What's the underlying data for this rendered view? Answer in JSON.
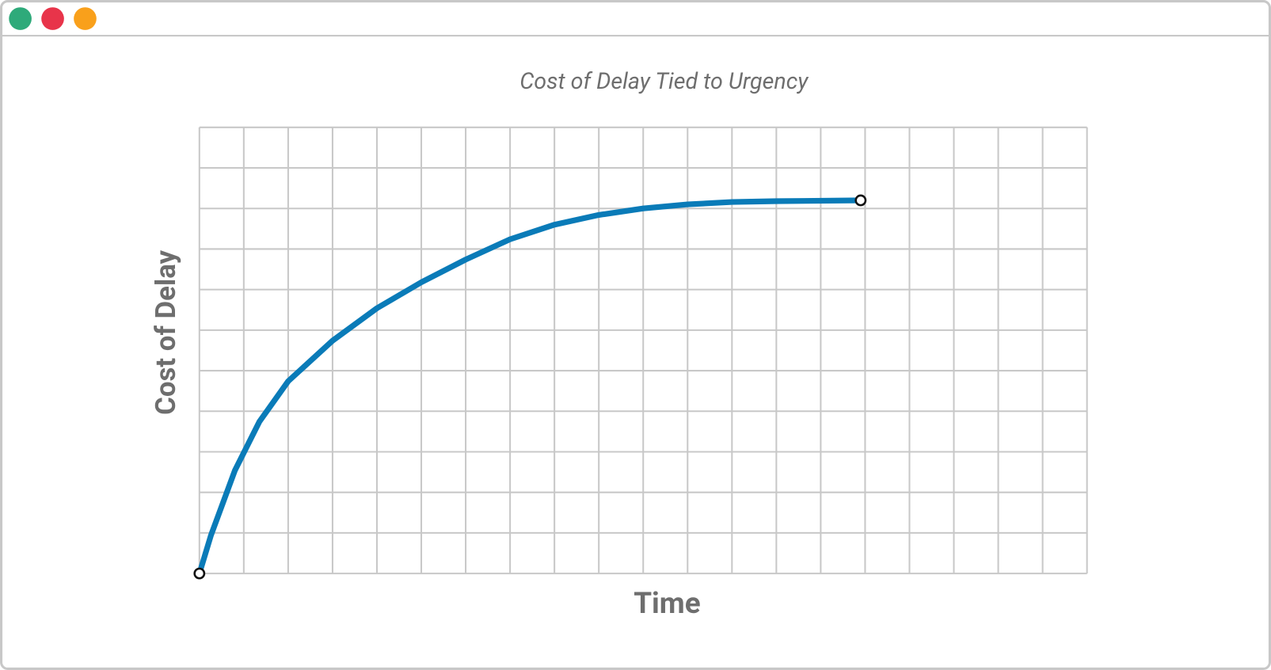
{
  "chart_data": {
    "type": "line",
    "title": "Cost of Delay Tied to Urgency",
    "x_label": "Time",
    "y_label": "Cost of Delay",
    "x": [
      0,
      0.26,
      0.8,
      1.35,
      2,
      3,
      4,
      5,
      6,
      7,
      8,
      9,
      10,
      11,
      12,
      13,
      14.9
    ],
    "series": [
      {
        "color": "#0a7bb8",
        "values": [
          0,
          0.94,
          2.54,
          3.74,
          4.74,
          5.74,
          6.54,
          7.18,
          7.74,
          8.24,
          8.6,
          8.84,
          9.0,
          9.1,
          9.16,
          9.18,
          9.2
        ]
      }
    ],
    "xlim": [
      0,
      20
    ],
    "ylim": [
      0,
      11
    ],
    "xticks": [
      0,
      1,
      2,
      3,
      4,
      5,
      6,
      7,
      8,
      9,
      10,
      11,
      12,
      13,
      14,
      15,
      16,
      17,
      18,
      19,
      20
    ],
    "yticks": [
      0,
      1,
      2,
      3,
      4,
      5,
      6,
      7,
      8,
      9,
      10,
      11
    ],
    "grid": true
  }
}
